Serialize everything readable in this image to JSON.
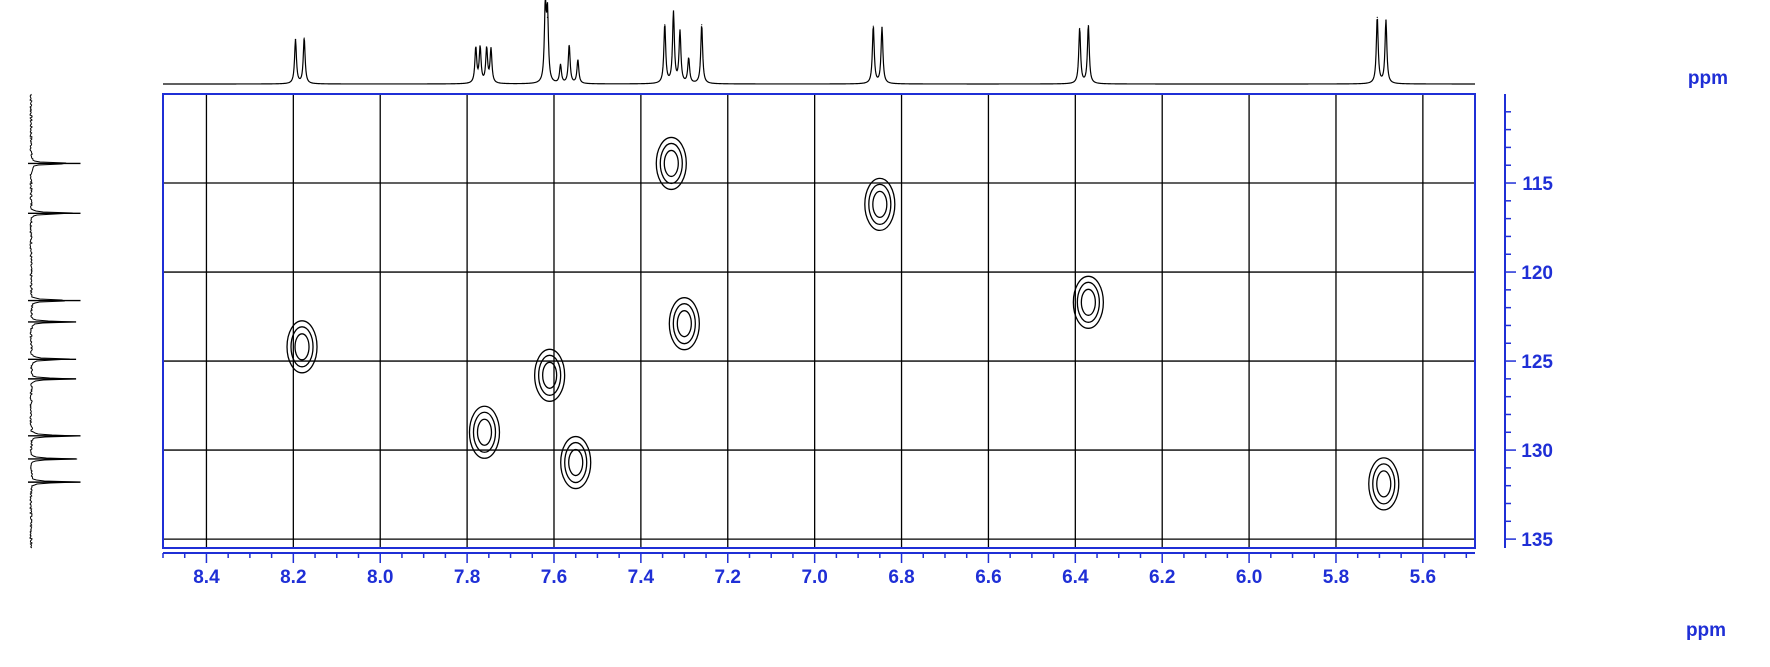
{
  "chart_data": {
    "type": "contour",
    "x": {
      "label": "ppm",
      "range": [
        8.5,
        5.48
      ],
      "ticks": [
        8.4,
        8.2,
        8.0,
        7.8,
        7.6,
        7.4,
        7.2,
        7.0,
        6.8,
        6.6,
        6.4,
        6.2,
        6.0,
        5.8,
        5.6
      ],
      "tick_labels": [
        "8.4",
        "8.2",
        "8.0",
        "7.8",
        "7.6",
        "7.4",
        "7.2",
        "7.0",
        "6.8",
        "6.6",
        "6.4",
        "6.2",
        "6.0",
        "5.8",
        "5.6"
      ],
      "grid": true
    },
    "y": {
      "label": "ppm",
      "range": [
        110,
        135.5
      ],
      "ticks": [
        115,
        120,
        125,
        130,
        135
      ],
      "tick_labels": [
        "115",
        "120",
        "125",
        "130",
        "135"
      ],
      "grid": true
    },
    "peaks": [
      {
        "h": 8.18,
        "c": 124.2
      },
      {
        "h": 7.76,
        "c": 129.0
      },
      {
        "h": 7.61,
        "c": 125.8
      },
      {
        "h": 7.55,
        "c": 130.7
      },
      {
        "h": 7.33,
        "c": 113.9
      },
      {
        "h": 7.3,
        "c": 122.9
      },
      {
        "h": 6.85,
        "c": 116.2
      },
      {
        "h": 6.37,
        "c": 121.7
      },
      {
        "h": 5.69,
        "c": 131.9
      }
    ],
    "proton_projection": [
      {
        "ppm": 8.195,
        "height": 0.6
      },
      {
        "ppm": 8.175,
        "height": 0.62
      },
      {
        "ppm": 7.78,
        "height": 0.48
      },
      {
        "ppm": 7.77,
        "height": 0.48
      },
      {
        "ppm": 7.755,
        "height": 0.47
      },
      {
        "ppm": 7.745,
        "height": 0.46
      },
      {
        "ppm": 7.62,
        "height": 1.0
      },
      {
        "ppm": 7.615,
        "height": 0.9
      },
      {
        "ppm": 7.585,
        "height": 0.25
      },
      {
        "ppm": 7.565,
        "height": 0.52
      },
      {
        "ppm": 7.545,
        "height": 0.32
      },
      {
        "ppm": 7.345,
        "height": 0.8
      },
      {
        "ppm": 7.325,
        "height": 0.96
      },
      {
        "ppm": 7.31,
        "height": 0.7
      },
      {
        "ppm": 7.29,
        "height": 0.34
      },
      {
        "ppm": 7.26,
        "height": 0.8
      },
      {
        "ppm": 6.865,
        "height": 0.78
      },
      {
        "ppm": 6.845,
        "height": 0.76
      },
      {
        "ppm": 6.39,
        "height": 0.75
      },
      {
        "ppm": 6.37,
        "height": 0.79
      },
      {
        "ppm": 5.705,
        "height": 0.9
      },
      {
        "ppm": 5.685,
        "height": 0.86
      }
    ],
    "carbon_projection": [
      {
        "ppm": 113.9,
        "height": 0.9
      },
      {
        "ppm": 116.7,
        "height": 0.9
      },
      {
        "ppm": 121.6,
        "height": 0.9
      },
      {
        "ppm": 122.8,
        "height": 0.82
      },
      {
        "ppm": 124.9,
        "height": 0.82
      },
      {
        "ppm": 126.0,
        "height": 0.82
      },
      {
        "ppm": 129.2,
        "height": 0.9
      },
      {
        "ppm": 130.5,
        "height": 0.82
      },
      {
        "ppm": 131.8,
        "height": 0.9
      }
    ]
  }
}
